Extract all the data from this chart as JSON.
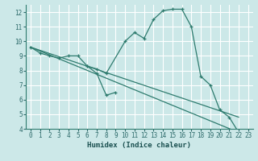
{
  "xlabel": "Humidex (Indice chaleur)",
  "bg_color": "#cce8e8",
  "grid_color": "#ffffff",
  "line_color": "#2e7b6e",
  "xlim": [
    -0.5,
    23.5
  ],
  "ylim": [
    4,
    12.5
  ],
  "xticks": [
    0,
    1,
    2,
    3,
    4,
    5,
    6,
    7,
    8,
    9,
    10,
    11,
    12,
    13,
    14,
    15,
    16,
    17,
    18,
    19,
    20,
    21,
    22,
    23
  ],
  "yticks": [
    4,
    5,
    6,
    7,
    8,
    9,
    10,
    11,
    12
  ],
  "lines": [
    {
      "x": [
        0,
        1,
        2,
        3,
        4,
        5,
        6,
        7,
        8,
        10,
        11,
        12,
        13,
        14,
        15,
        16,
        17,
        18,
        19,
        20,
        21,
        22
      ],
      "y": [
        9.6,
        9.2,
        9.0,
        8.85,
        9.0,
        9.0,
        8.3,
        8.1,
        7.8,
        10.0,
        10.6,
        10.2,
        11.5,
        12.1,
        12.2,
        12.2,
        11.0,
        7.6,
        7.0,
        5.3,
        4.8,
        3.75
      ],
      "markers": true
    },
    {
      "x": [
        6,
        7,
        8,
        9
      ],
      "y": [
        8.3,
        7.8,
        6.3,
        6.5
      ],
      "markers": true
    },
    {
      "x": [
        0,
        22
      ],
      "y": [
        9.6,
        4.8
      ],
      "markers": false
    },
    {
      "x": [
        0,
        22
      ],
      "y": [
        9.6,
        3.75
      ],
      "markers": false
    }
  ]
}
